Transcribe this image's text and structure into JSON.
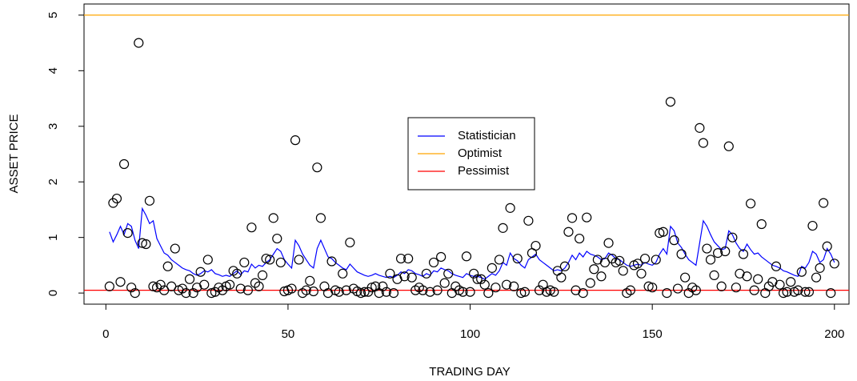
{
  "chart_data": {
    "type": "scatter",
    "xlabel": "TRADING DAY",
    "ylabel": "ASSET PRICE",
    "xlim": [
      -6,
      204
    ],
    "ylim": [
      -0.2,
      5.2
    ],
    "xticks": [
      0,
      50,
      100,
      150,
      200
    ],
    "yticks": [
      0,
      1,
      2,
      3,
      4,
      5
    ],
    "x": [
      1,
      2,
      3,
      4,
      5,
      6,
      7,
      8,
      9,
      10,
      11,
      12,
      13,
      14,
      15,
      16,
      17,
      18,
      19,
      20,
      21,
      22,
      23,
      24,
      25,
      26,
      27,
      28,
      29,
      30,
      31,
      32,
      33,
      34,
      35,
      36,
      37,
      38,
      39,
      40,
      41,
      42,
      43,
      44,
      45,
      46,
      47,
      48,
      49,
      50,
      51,
      52,
      53,
      54,
      55,
      56,
      57,
      58,
      59,
      60,
      61,
      62,
      63,
      64,
      65,
      66,
      67,
      68,
      69,
      70,
      71,
      72,
      73,
      74,
      75,
      76,
      77,
      78,
      79,
      80,
      81,
      82,
      83,
      84,
      85,
      86,
      87,
      88,
      89,
      90,
      91,
      92,
      93,
      94,
      95,
      96,
      97,
      98,
      99,
      100,
      101,
      102,
      103,
      104,
      105,
      106,
      107,
      108,
      109,
      110,
      111,
      112,
      113,
      114,
      115,
      116,
      117,
      118,
      119,
      120,
      121,
      122,
      123,
      124,
      125,
      126,
      127,
      128,
      129,
      130,
      131,
      132,
      133,
      134,
      135,
      136,
      137,
      138,
      139,
      140,
      141,
      142,
      143,
      144,
      145,
      146,
      147,
      148,
      149,
      150,
      151,
      152,
      153,
      154,
      155,
      156,
      157,
      158,
      159,
      160,
      161,
      162,
      163,
      164,
      165,
      166,
      167,
      168,
      169,
      170,
      171,
      172,
      173,
      174,
      175,
      176,
      177,
      178,
      179,
      180,
      181,
      182,
      183,
      184,
      185,
      186,
      187,
      188,
      189,
      190,
      191,
      192,
      193,
      194,
      195,
      196,
      197,
      198,
      199,
      200
    ],
    "values": [
      0.12,
      1.62,
      1.7,
      0.2,
      2.32,
      1.08,
      0.1,
      0.0,
      4.5,
      0.9,
      0.88,
      1.66,
      0.12,
      0.1,
      0.15,
      0.05,
      0.48,
      0.12,
      0.8,
      0.05,
      0.08,
      0.0,
      0.25,
      0.0,
      0.1,
      0.38,
      0.15,
      0.6,
      0.0,
      0.02,
      0.1,
      0.05,
      0.12,
      0.15,
      0.4,
      0.35,
      0.08,
      0.55,
      0.05,
      1.18,
      0.18,
      0.12,
      0.32,
      0.62,
      0.6,
      1.35,
      0.98,
      0.55,
      0.03,
      0.05,
      0.08,
      2.75,
      0.6,
      0.0,
      0.05,
      0.22,
      0.03,
      2.26,
      1.35,
      0.12,
      0.0,
      0.57,
      0.05,
      0.02,
      0.35,
      0.05,
      0.91,
      0.08,
      0.03,
      0.0,
      0.02,
      0.02,
      0.1,
      0.12,
      0.0,
      0.12,
      0.02,
      0.35,
      0.0,
      0.25,
      0.62,
      0.3,
      0.62,
      0.28,
      0.05,
      0.1,
      0.05,
      0.35,
      0.02,
      0.55,
      0.05,
      0.65,
      0.18,
      0.35,
      0.0,
      0.12,
      0.05,
      0.02,
      0.66,
      0.02,
      0.35,
      0.25,
      0.25,
      0.15,
      0.0,
      0.45,
      0.1,
      0.6,
      1.17,
      0.15,
      1.53,
      0.12,
      0.62,
      0.0,
      0.02,
      1.3,
      0.72,
      0.85,
      0.05,
      0.15,
      0.02,
      0.05,
      0.02,
      0.4,
      0.28,
      0.48,
      1.1,
      1.35,
      0.05,
      0.98,
      0.0,
      1.36,
      0.18,
      0.43,
      0.6,
      0.3,
      0.55,
      0.9,
      0.62,
      0.55,
      0.58,
      0.4,
      0.0,
      0.05,
      0.5,
      0.53,
      0.35,
      0.62,
      0.12,
      0.1,
      0.6,
      1.08,
      1.1,
      0.0,
      3.44,
      0.95,
      0.08,
      0.7,
      0.28,
      0.0,
      0.1,
      0.05,
      2.97,
      2.7,
      0.8,
      0.6,
      0.32,
      0.72,
      0.12,
      0.75,
      2.64,
      1.0,
      0.1,
      0.35,
      0.7,
      0.3,
      1.61,
      0.05,
      0.25,
      1.24,
      0.0,
      0.12,
      0.2,
      0.48,
      0.15,
      0.0,
      0.02,
      0.2,
      0.02,
      0.05,
      0.38,
      0.02,
      0.02,
      1.21,
      0.28,
      0.45,
      1.62,
      0.84,
      0.0,
      0.53
    ],
    "series": [
      {
        "name": "Statistician",
        "color": "#0000ff",
        "values": [
          1.1,
          0.92,
          1.05,
          1.2,
          1.05,
          1.25,
          1.2,
          0.95,
          0.8,
          1.52,
          1.4,
          1.25,
          1.3,
          0.98,
          0.85,
          0.72,
          0.68,
          0.6,
          0.55,
          0.5,
          0.45,
          0.42,
          0.4,
          0.35,
          0.32,
          0.35,
          0.4,
          0.38,
          0.42,
          0.35,
          0.33,
          0.3,
          0.32,
          0.3,
          0.35,
          0.4,
          0.33,
          0.4,
          0.38,
          0.52,
          0.45,
          0.5,
          0.48,
          0.55,
          0.6,
          0.7,
          0.8,
          0.75,
          0.6,
          0.52,
          0.45,
          0.95,
          0.85,
          0.7,
          0.6,
          0.5,
          0.45,
          0.8,
          0.95,
          0.8,
          0.65,
          0.62,
          0.55,
          0.5,
          0.45,
          0.42,
          0.52,
          0.45,
          0.38,
          0.35,
          0.32,
          0.3,
          0.32,
          0.35,
          0.32,
          0.3,
          0.28,
          0.3,
          0.28,
          0.32,
          0.38,
          0.35,
          0.42,
          0.4,
          0.35,
          0.33,
          0.3,
          0.35,
          0.32,
          0.4,
          0.38,
          0.45,
          0.42,
          0.4,
          0.35,
          0.32,
          0.3,
          0.28,
          0.35,
          0.32,
          0.3,
          0.3,
          0.28,
          0.25,
          0.3,
          0.35,
          0.32,
          0.4,
          0.55,
          0.5,
          0.72,
          0.62,
          0.58,
          0.5,
          0.45,
          0.6,
          0.65,
          0.7,
          0.6,
          0.55,
          0.5,
          0.45,
          0.4,
          0.42,
          0.4,
          0.45,
          0.55,
          0.68,
          0.6,
          0.72,
          0.65,
          0.75,
          0.7,
          0.68,
          0.65,
          0.6,
          0.62,
          0.72,
          0.68,
          0.62,
          0.6,
          0.55,
          0.5,
          0.48,
          0.5,
          0.52,
          0.5,
          0.55,
          0.52,
          0.5,
          0.55,
          0.7,
          0.8,
          0.7,
          1.2,
          1.12,
          0.9,
          0.82,
          0.7,
          0.6,
          0.55,
          0.5,
          0.9,
          1.3,
          1.2,
          1.05,
          0.92,
          0.85,
          0.78,
          0.8,
          1.12,
          1.05,
          0.9,
          0.8,
          0.75,
          0.88,
          0.78,
          0.7,
          0.72,
          0.65,
          0.6,
          0.55,
          0.5,
          0.48,
          0.45,
          0.4,
          0.38,
          0.35,
          0.32,
          0.3,
          0.48,
          0.45,
          0.55,
          0.75,
          0.7,
          0.55,
          0.6,
          0.8,
          0.7,
          0.55
        ]
      }
    ],
    "hlines": [
      {
        "name": "Optimist",
        "color": "#ffa500",
        "value": 5
      },
      {
        "name": "Pessimist",
        "color": "#ff0000",
        "value": 0.05
      }
    ],
    "marker_color": "#000000"
  }
}
